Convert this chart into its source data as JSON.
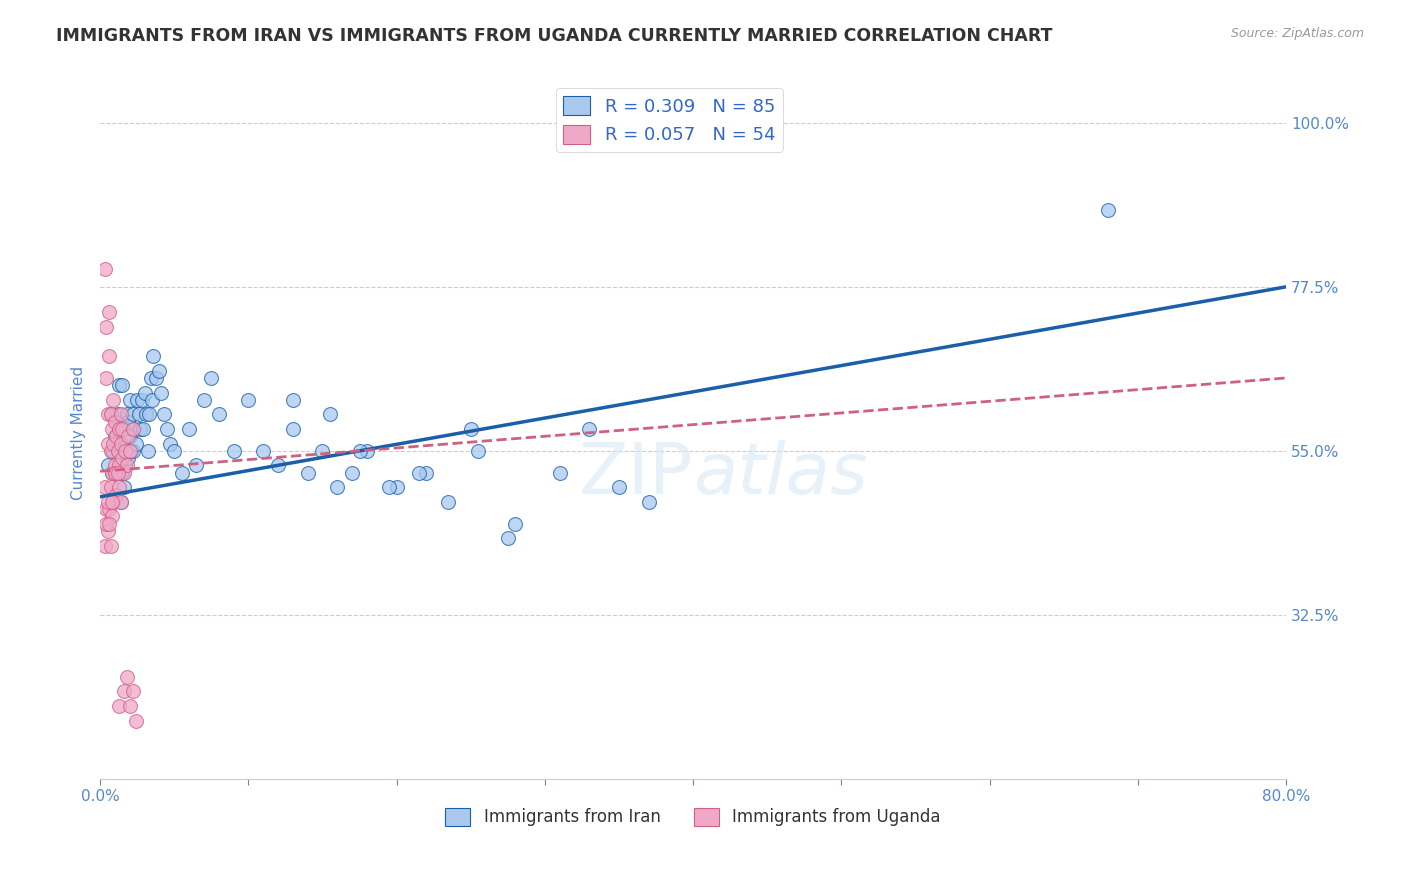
{
  "title": "IMMIGRANTS FROM IRAN VS IMMIGRANTS FROM UGANDA CURRENTLY MARRIED CORRELATION CHART",
  "source": "Source: ZipAtlas.com",
  "ylabel": "Currently Married",
  "xlim": [
    0.0,
    0.8
  ],
  "ylim": [
    0.1,
    1.05
  ],
  "yticks": [
    0.325,
    0.55,
    0.775,
    1.0
  ],
  "ytick_labels": [
    "32.5%",
    "55.0%",
    "77.5%",
    "100.0%"
  ],
  "xticks": [
    0.0,
    0.1,
    0.2,
    0.3,
    0.4,
    0.5,
    0.6,
    0.7,
    0.8
  ],
  "xtick_labels": [
    "0.0%",
    "",
    "",
    "",
    "",
    "",
    "",
    "",
    "80.0%"
  ],
  "iran_R": 0.309,
  "iran_N": 85,
  "uganda_R": 0.057,
  "uganda_N": 54,
  "iran_color": "#a8c8f0",
  "uganda_color": "#f0a8c8",
  "iran_line_color": "#1a5fa8",
  "uganda_line_color": "#d06080",
  "axis_label_color": "#5588cc",
  "legend_R_N_color": "#3366cc",
  "background_color": "#ffffff",
  "grid_color": "#cccccc",
  "iran_trend_x": [
    0.0,
    0.8
  ],
  "iran_trend_y": [
    0.487,
    0.775
  ],
  "uganda_trend_x": [
    0.0,
    0.8
  ],
  "uganda_trend_y": [
    0.522,
    0.65
  ],
  "iran_x": [
    0.005,
    0.007,
    0.008,
    0.008,
    0.009,
    0.01,
    0.01,
    0.011,
    0.011,
    0.012,
    0.012,
    0.013,
    0.013,
    0.014,
    0.014,
    0.015,
    0.015,
    0.015,
    0.016,
    0.016,
    0.017,
    0.017,
    0.018,
    0.018,
    0.019,
    0.019,
    0.02,
    0.02,
    0.021,
    0.022,
    0.022,
    0.023,
    0.024,
    0.025,
    0.026,
    0.027,
    0.028,
    0.029,
    0.03,
    0.031,
    0.032,
    0.033,
    0.034,
    0.035,
    0.036,
    0.038,
    0.04,
    0.041,
    0.043,
    0.045,
    0.047,
    0.05,
    0.055,
    0.06,
    0.065,
    0.07,
    0.075,
    0.08,
    0.09,
    0.1,
    0.11,
    0.12,
    0.13,
    0.14,
    0.15,
    0.16,
    0.17,
    0.18,
    0.2,
    0.22,
    0.25,
    0.28,
    0.31,
    0.33,
    0.35,
    0.37,
    0.13,
    0.155,
    0.175,
    0.195,
    0.215,
    0.235,
    0.255,
    0.275,
    0.68
  ],
  "iran_y": [
    0.53,
    0.6,
    0.55,
    0.52,
    0.55,
    0.57,
    0.49,
    0.56,
    0.52,
    0.6,
    0.55,
    0.64,
    0.58,
    0.52,
    0.48,
    0.56,
    0.52,
    0.64,
    0.54,
    0.5,
    0.58,
    0.53,
    0.6,
    0.55,
    0.59,
    0.54,
    0.62,
    0.57,
    0.55,
    0.6,
    0.55,
    0.58,
    0.56,
    0.62,
    0.6,
    0.58,
    0.62,
    0.58,
    0.63,
    0.6,
    0.55,
    0.6,
    0.65,
    0.62,
    0.68,
    0.65,
    0.66,
    0.63,
    0.6,
    0.58,
    0.56,
    0.55,
    0.52,
    0.58,
    0.53,
    0.62,
    0.65,
    0.6,
    0.55,
    0.62,
    0.55,
    0.53,
    0.58,
    0.52,
    0.55,
    0.5,
    0.52,
    0.55,
    0.5,
    0.52,
    0.58,
    0.45,
    0.52,
    0.58,
    0.5,
    0.48,
    0.62,
    0.6,
    0.55,
    0.5,
    0.52,
    0.48,
    0.55,
    0.43,
    0.88
  ],
  "uganda_x": [
    0.003,
    0.004,
    0.004,
    0.005,
    0.005,
    0.006,
    0.006,
    0.007,
    0.007,
    0.008,
    0.008,
    0.009,
    0.009,
    0.01,
    0.01,
    0.011,
    0.011,
    0.012,
    0.013,
    0.013,
    0.014,
    0.014,
    0.015,
    0.015,
    0.016,
    0.017,
    0.018,
    0.019,
    0.02,
    0.022,
    0.003,
    0.004,
    0.005,
    0.006,
    0.007,
    0.008,
    0.009,
    0.01,
    0.011,
    0.012,
    0.013,
    0.014,
    0.003,
    0.004,
    0.005,
    0.006,
    0.007,
    0.008,
    0.013,
    0.016,
    0.018,
    0.02,
    0.022,
    0.024
  ],
  "uganda_y": [
    0.8,
    0.72,
    0.65,
    0.6,
    0.56,
    0.68,
    0.74,
    0.55,
    0.6,
    0.52,
    0.58,
    0.56,
    0.62,
    0.53,
    0.59,
    0.57,
    0.52,
    0.55,
    0.58,
    0.53,
    0.56,
    0.6,
    0.54,
    0.58,
    0.52,
    0.55,
    0.53,
    0.57,
    0.55,
    0.58,
    0.5,
    0.47,
    0.44,
    0.47,
    0.5,
    0.46,
    0.48,
    0.52,
    0.49,
    0.52,
    0.5,
    0.48,
    0.42,
    0.45,
    0.48,
    0.45,
    0.42,
    0.48,
    0.2,
    0.22,
    0.24,
    0.2,
    0.22,
    0.18
  ]
}
